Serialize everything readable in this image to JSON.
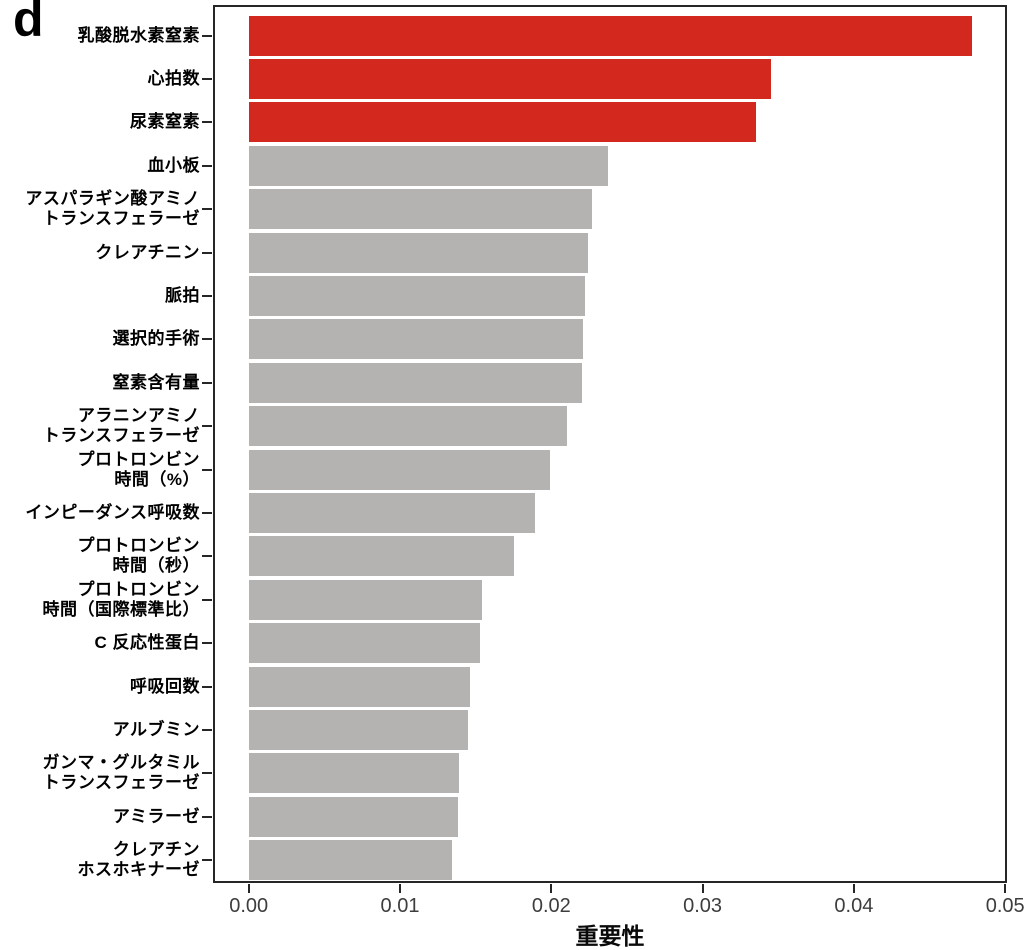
{
  "figure": {
    "panel_letter": "d"
  },
  "chart_data": {
    "type": "bar",
    "orientation": "horizontal",
    "title": "",
    "xlabel": "重要性",
    "ylabel": "",
    "xlim": [
      0,
      0.05
    ],
    "x_ticks": [
      "0.00",
      "0.01",
      "0.02",
      "0.03",
      "0.04",
      "0.05"
    ],
    "x_tick_values": [
      0,
      0.01,
      0.02,
      0.03,
      0.04,
      0.05
    ],
    "grid": false,
    "legend": null,
    "colors": {
      "highlight": "#d2281e",
      "default": "#b4b3b1"
    },
    "categories": [
      "乳酸脱水素窒素",
      "心拍数",
      "尿素窒素",
      "血小板",
      "アスパラギン酸アミノ\nトランスフェラーゼ",
      "クレアチニン",
      "脈拍",
      "選択的手術",
      "窒素含有量",
      "アラニンアミノ\nトランスフェラーゼ",
      "プロトロンビン\n時間（%）",
      "インピーダンス呼吸数",
      "プロトロンビン\n時間（秒）",
      "プロトロンビン\n時間（国際標準比）",
      "C 反応性蛋白",
      "呼吸回数",
      "アルブミン",
      "ガンマ・グルタミル\nトランスフェラーゼ",
      "アミラーゼ",
      "クレアチン\nホスホキナーゼ"
    ],
    "values": [
      0.0478,
      0.0345,
      0.0335,
      0.0237,
      0.0227,
      0.0224,
      0.0222,
      0.0221,
      0.022,
      0.021,
      0.0199,
      0.0189,
      0.0175,
      0.0154,
      0.0153,
      0.0146,
      0.0145,
      0.0139,
      0.0138,
      0.0134
    ],
    "bar_colors": [
      "highlight",
      "highlight",
      "highlight",
      "default",
      "default",
      "default",
      "default",
      "default",
      "default",
      "default",
      "default",
      "default",
      "default",
      "default",
      "default",
      "default",
      "default",
      "default",
      "default",
      "default"
    ]
  }
}
